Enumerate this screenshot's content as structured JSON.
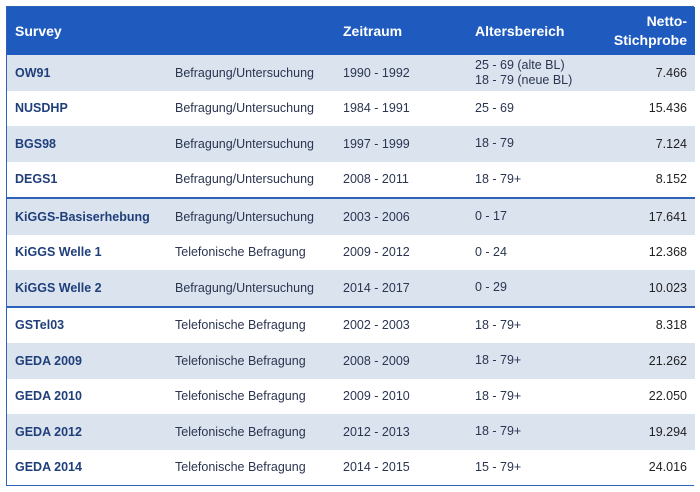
{
  "header": {
    "survey": "Survey",
    "type": "",
    "period": "Zeitraum",
    "age": "Altersbereich",
    "sample_line1": "Netto-",
    "sample_line2": "Stichprobe"
  },
  "rows": [
    {
      "survey": "OW91",
      "type": "Befragung/Untersuchung",
      "period": "1990 - 1992",
      "age": [
        "25 - 69 (alte BL)",
        "18 - 79 (neue BL)"
      ],
      "sample": "7.466"
    },
    {
      "survey": "NUSDHP",
      "type": "Befragung/Untersuchung",
      "period": "1984 - 1991",
      "age": [
        "25 - 69"
      ],
      "sample": "15.436"
    },
    {
      "survey": "BGS98",
      "type": "Befragung/Untersuchung",
      "period": "1997 - 1999",
      "age": [
        "18 - 79"
      ],
      "sample": "7.124"
    },
    {
      "survey": "DEGS1",
      "type": "Befragung/Untersuchung",
      "period": "2008 - 2011",
      "age": [
        "18 - 79+"
      ],
      "sample": "8.152"
    },
    {
      "survey": "KiGGS-Basiserhebung",
      "type": "Befragung/Untersuchung",
      "period": "2003 - 2006",
      "age": [
        "0 - 17"
      ],
      "sample": "17.641"
    },
    {
      "survey": "KiGGS Welle 1",
      "type": "Telefonische Befragung",
      "period": "2009 - 2012",
      "age": [
        "0 - 24"
      ],
      "sample": "12.368"
    },
    {
      "survey": "KiGGS Welle 2",
      "type": "Befragung/Untersuchung",
      "period": "2014 - 2017",
      "age": [
        "0 - 29"
      ],
      "sample": "10.023"
    },
    {
      "survey": "GSTel03",
      "type": "Telefonische Befragung",
      "period": "2002 - 2003",
      "age": [
        "18 - 79+"
      ],
      "sample": "8.318"
    },
    {
      "survey": "GEDA 2009",
      "type": "Telefonische Befragung",
      "period": "2008 - 2009",
      "age": [
        "18 - 79+"
      ],
      "sample": "21.262"
    },
    {
      "survey": "GEDA 2010",
      "type": "Telefonische Befragung",
      "period": "2009 - 2010",
      "age": [
        "18 - 79+"
      ],
      "sample": "22.050"
    },
    {
      "survey": "GEDA 2012",
      "type": "Telefonische Befragung",
      "period": "2012 - 2013",
      "age": [
        "18 - 79+"
      ],
      "sample": "19.294"
    },
    {
      "survey": "GEDA 2014",
      "type": "Telefonische Befragung",
      "period": "2014 - 2015",
      "age": [
        "15 - 79+"
      ],
      "sample": "24.016"
    }
  ],
  "group_start_rows": [
    4,
    7
  ],
  "colors": {
    "header_bg": "#1f5bbf",
    "stripe": "#dbe3ef",
    "survey_text": "#1f3f7a",
    "border": "#2c62b8"
  }
}
